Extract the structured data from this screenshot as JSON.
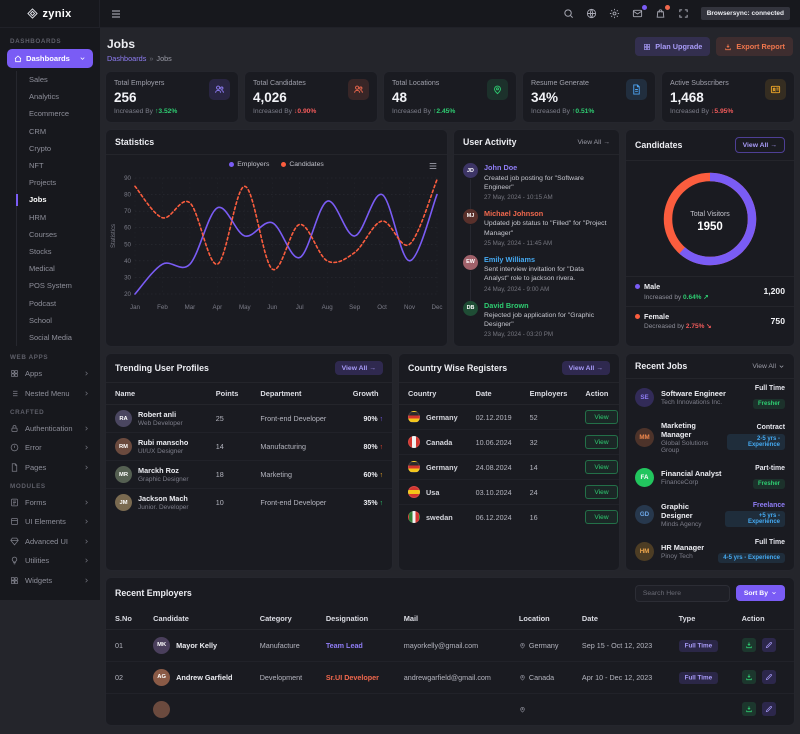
{
  "navbar": {
    "brand": "zynix",
    "status_tooltip": "Browsersync: connected"
  },
  "sidebar": {
    "section_label": "DASHBOARDS",
    "dashboards_label": "Dashboards",
    "dashboard_items": [
      {
        "label": "Sales"
      },
      {
        "label": "Analytics"
      },
      {
        "label": "Ecommerce"
      },
      {
        "label": "CRM"
      },
      {
        "label": "Crypto"
      },
      {
        "label": "NFT"
      },
      {
        "label": "Projects"
      },
      {
        "label": "Jobs",
        "cls": "active"
      },
      {
        "label": "HRM"
      },
      {
        "label": "Courses"
      },
      {
        "label": "Stocks"
      },
      {
        "label": "Medical"
      },
      {
        "label": "POS System"
      },
      {
        "label": "Podcast"
      },
      {
        "label": "School"
      },
      {
        "label": "Social Media"
      }
    ],
    "webapps": {
      "label": "WEB APPS",
      "items": [
        {
          "label": "Apps",
          "icon": "grid"
        },
        {
          "label": "Nested Menu",
          "icon": "list"
        }
      ]
    },
    "crafted": {
      "label": "CRAFTED",
      "items": [
        {
          "label": "Authentication",
          "icon": "lock"
        },
        {
          "label": "Error",
          "icon": "alert"
        },
        {
          "label": "Pages",
          "icon": "file"
        }
      ]
    },
    "modules": {
      "label": "MODULES",
      "items": [
        {
          "label": "Forms",
          "icon": "form"
        },
        {
          "label": "UI Elements",
          "icon": "box"
        },
        {
          "label": "Advanced UI",
          "icon": "gem"
        },
        {
          "label": "Utilities",
          "icon": "bulb"
        },
        {
          "label": "Widgets",
          "icon": "puzzle"
        }
      ]
    }
  },
  "header": {
    "title": "Jobs",
    "breadcrumb_root": "Dashboards",
    "breadcrumb_sep": "»",
    "breadcrumb_current": "Jobs",
    "plan_upgrade": "Plan Upgrade",
    "export_report": "Export Report"
  },
  "stats_cards": [
    {
      "label": "Total Employers",
      "value": "256",
      "prefix": "Increased By",
      "arrow": "↑",
      "delta": "3.52%",
      "delta_color": "#2ecc71",
      "icon": "users",
      "icon_fg": "#8f7df5",
      "icon_bg": "rgba(122,92,245,0.16)"
    },
    {
      "label": "Total Candidates",
      "value": "4,026",
      "prefix": "Increased By",
      "arrow": "↓",
      "delta": "0.90%",
      "delta_color": "#f05a5a",
      "icon": "users",
      "icon_fg": "#f0684d",
      "icon_bg": "rgba(240,104,77,0.14)"
    },
    {
      "label": "Total Locations",
      "value": "48",
      "prefix": "Increased By",
      "arrow": "↑",
      "delta": "2.45%",
      "delta_color": "#2ecc71",
      "icon": "pin",
      "icon_fg": "#2ecc71",
      "icon_bg": "rgba(46,204,113,0.13)"
    },
    {
      "label": "Resume Generate",
      "value": "34%",
      "prefix": "Increased By",
      "arrow": "↑",
      "delta": "0.51%",
      "delta_color": "#2ecc71",
      "icon": "doc",
      "icon_fg": "#4da3f0",
      "icon_bg": "rgba(77,163,240,0.14)"
    },
    {
      "label": "Active Subscribers",
      "value": "1,468",
      "prefix": "Increased By",
      "arrow": "↓",
      "delta": "5.95%",
      "delta_color": "#f05a5a",
      "icon": "card",
      "icon_fg": "#f0a828",
      "icon_bg": "rgba(240,168,40,0.13)"
    }
  ],
  "statistics_panel": {
    "title": "Statistics"
  },
  "chart_data": [
    {
      "type": "line",
      "title": "Statistics",
      "x": [
        "Jan",
        "Feb",
        "Mar",
        "Apr",
        "May",
        "Jun",
        "Jul",
        "Aug",
        "Sep",
        "Oct",
        "Nov",
        "Dec"
      ],
      "series": [
        {
          "name": "Employers",
          "color": "#7a5cf5",
          "style": "solid",
          "values": [
            20,
            38,
            38,
            72,
            55,
            63,
            42,
            76,
            55,
            80,
            40,
            80
          ]
        },
        {
          "name": "Candidates",
          "color": "#fb5d3e",
          "style": "dashed",
          "values": [
            85,
            66,
            75,
            38,
            85,
            35,
            62,
            40,
            45,
            64,
            50,
            89
          ]
        }
      ],
      "xlabel": "",
      "ylabel": "Statistics",
      "ylim": [
        20,
        90
      ],
      "ytick_step": 10,
      "grid": true,
      "legend_position": "top"
    },
    {
      "type": "donut",
      "title": "Candidates",
      "labels": [
        "Male",
        "Female"
      ],
      "values": [
        1200,
        750
      ],
      "colors": [
        "#7a5cf5",
        "#fb5d3e"
      ],
      "center_label": "Total Visitors",
      "center_value": "1950"
    }
  ],
  "user_activity": {
    "title": "User Activity",
    "view_all": "View All",
    "view_all_arrow": "→",
    "items": [
      {
        "initials": "JD",
        "avatar_bg": "#3d3566",
        "name": "John Doe",
        "name_color": "#8f7df5",
        "text": "Created job posting for \"Software Engineer\"",
        "time": "27 May, 2024 - 10:15 AM"
      },
      {
        "initials": "MJ",
        "avatar_bg": "#59302b",
        "name": "Michael Johnson",
        "name_color": "#f0684d",
        "text": "Updated job status to \"Filled\" for \"Project Manager\"",
        "time": "25 May, 2024 - 11:45 AM"
      },
      {
        "initials": "EW",
        "avatar_bg": "#a0616a",
        "name": "Emily Williams",
        "name_color": "#45aaf2",
        "text": "Sent interview invitation for \"Data Analyst\" role to jackson rivera.",
        "time": "24 May, 2024 - 9:00 AM"
      },
      {
        "initials": "DB",
        "avatar_bg": "#1f4d35",
        "name": "David Brown",
        "name_color": "#2ecc71",
        "text": "Rejected job application for \"Graphic Designer\"",
        "time": "23 May, 2024 - 03:20 PM"
      }
    ]
  },
  "candidates_panel": {
    "title": "Candidates",
    "view_all": "View All",
    "view_all_arrow": "→",
    "rows": [
      {
        "label": "Male",
        "dot": "#7a5cf5",
        "note": "Increased by",
        "pct": "0.64%",
        "pct_color": "#2ecc71",
        "trend": "↗",
        "value": "1,200"
      },
      {
        "label": "Female",
        "dot": "#fb5d3e",
        "note": "Decreased by",
        "pct": "2.75%",
        "pct_color": "#f05a5a",
        "trend": "↘",
        "value": "750"
      }
    ]
  },
  "trending": {
    "title": "Trending User Profiles",
    "view_all": "View All",
    "view_all_arrow": "→",
    "columns": [
      "Name",
      "Points",
      "Department",
      "Growth"
    ],
    "rows": [
      {
        "initials": "RA",
        "avatar_bg": "#4a4660",
        "name": "Robert anli",
        "role": "Web Developer",
        "points": "25",
        "dept": "Front-end Developer",
        "pct": "90%",
        "bar": 90,
        "color": "#7a5cf5",
        "arrow": "↑"
      },
      {
        "initials": "RM",
        "avatar_bg": "#6b4a3e",
        "name": "Rubi manscho",
        "role": "UI/UX Designer",
        "points": "14",
        "dept": "Manufacturing",
        "pct": "80%",
        "bar": 80,
        "color": "#f0432e",
        "arrow": "↑"
      },
      {
        "initials": "MR",
        "avatar_bg": "#556052",
        "name": "Marckh Roz",
        "role": "Graphic Designer",
        "points": "18",
        "dept": "Marketing",
        "pct": "60%",
        "bar": 60,
        "color": "#f0a828",
        "arrow": "↑"
      },
      {
        "initials": "JM",
        "avatar_bg": "#7a6a50",
        "name": "Jackson Mach",
        "role": "Junior. Developer",
        "points": "10",
        "dept": "Front-end Developer",
        "pct": "35%",
        "bar": 35,
        "color": "#2ecc71",
        "arrow": "↑"
      }
    ]
  },
  "country": {
    "title": "Country Wise Registers",
    "view_all": "View All",
    "view_all_arrow": "→",
    "columns": [
      "Country",
      "Date",
      "Employers",
      "Action"
    ],
    "rows": [
      {
        "country": "Germany",
        "flag": "germany",
        "date": "02.12.2019",
        "employers": "52",
        "action": "View"
      },
      {
        "country": "Canada",
        "flag": "canada",
        "date": "10.06.2024",
        "employers": "32",
        "action": "View"
      },
      {
        "country": "Germany",
        "flag": "germany",
        "date": "24.08.2024",
        "employers": "14",
        "action": "View"
      },
      {
        "country": "Usa",
        "flag": "usa",
        "date": "03.10.2024",
        "employers": "24",
        "action": "View"
      },
      {
        "country": "swedan",
        "flag": "sweden",
        "date": "06.12.2024",
        "employers": "16",
        "action": "View"
      }
    ]
  },
  "recent_jobs": {
    "title": "Recent Jobs",
    "view_all": "View All",
    "items": [
      {
        "initials": "SE",
        "avatar_bg": "#322b58",
        "avatar_fg": "#8f7df5",
        "title": "Software Engineer",
        "company": "Tech Innovations Inc.",
        "type": "Full Time",
        "type_color": "#e6e7ee",
        "badge": "Fresher",
        "badge_cls": "badge-green"
      },
      {
        "initials": "MM",
        "avatar_bg": "#4d332a",
        "avatar_fg": "#f0884d",
        "title": "Marketing Manager",
        "company": "Global Solutions Group",
        "type": "Contract",
        "type_color": "#e6e7ee",
        "badge": "2-5 yrs - Experience",
        "badge_cls": "badge-blue"
      },
      {
        "initials": "FA",
        "avatar_bg": "#22c55e",
        "avatar_fg": "#ffffff",
        "title": "Financial Analyst",
        "company": "FinanceCorp",
        "type": "Part-time",
        "type_color": "#e6e7ee",
        "badge": "Fresher",
        "badge_cls": "badge-green"
      },
      {
        "initials": "GD",
        "avatar_bg": "#27384d",
        "avatar_fg": "#6ea8e8",
        "title": "Graphic Designer",
        "company": "Minds Agency",
        "type": "Freelance",
        "type_color": "#8f7df5",
        "badge": "+5 yrs - Experience",
        "badge_cls": "badge-blue"
      },
      {
        "initials": "HM",
        "avatar_bg": "#4d3d24",
        "avatar_fg": "#f0a84d",
        "title": "HR Manager",
        "company": "Pinoy Tech",
        "type": "Full Time",
        "type_color": "#e6e7ee",
        "badge": "4-5 yrs - Experience",
        "badge_cls": "badge-blue"
      }
    ]
  },
  "recent_employers": {
    "title": "Recent Employers",
    "search_placeholder": "Search Here",
    "sort_by": "Sort By",
    "columns": [
      "S.No",
      "Candidate",
      "Category",
      "Designation",
      "Mail",
      "Location",
      "Date",
      "Type",
      "Action"
    ],
    "rows": [
      {
        "s_no": "01",
        "initials": "MK",
        "avatar_bg": "#4a3f5c",
        "name": "Mayor Kelly",
        "category": "Manufacture",
        "designation": "Team Lead",
        "designation_color": "#8f7df5",
        "mail": "mayorkelly@gmail.com",
        "location": "Germany",
        "date": "Sep 15 - Oct 12, 2023",
        "type": "Full Time"
      },
      {
        "s_no": "02",
        "initials": "AG",
        "avatar_bg": "#8a5a46",
        "name": "Andrew Garfield",
        "category": "Development",
        "designation": "Sr.UI Developer",
        "designation_color": "#f0684d",
        "mail": "andrewgarfield@gmail.com",
        "location": "Canada",
        "date": "Apr 10 - Dec 12, 2023",
        "type": "Full Time"
      },
      {
        "s_no": "",
        "initials": "",
        "avatar_bg": "#6b4a3e",
        "name": "",
        "category": "",
        "designation": "",
        "mail": "",
        "location": "",
        "date": "",
        "type": ""
      }
    ]
  }
}
